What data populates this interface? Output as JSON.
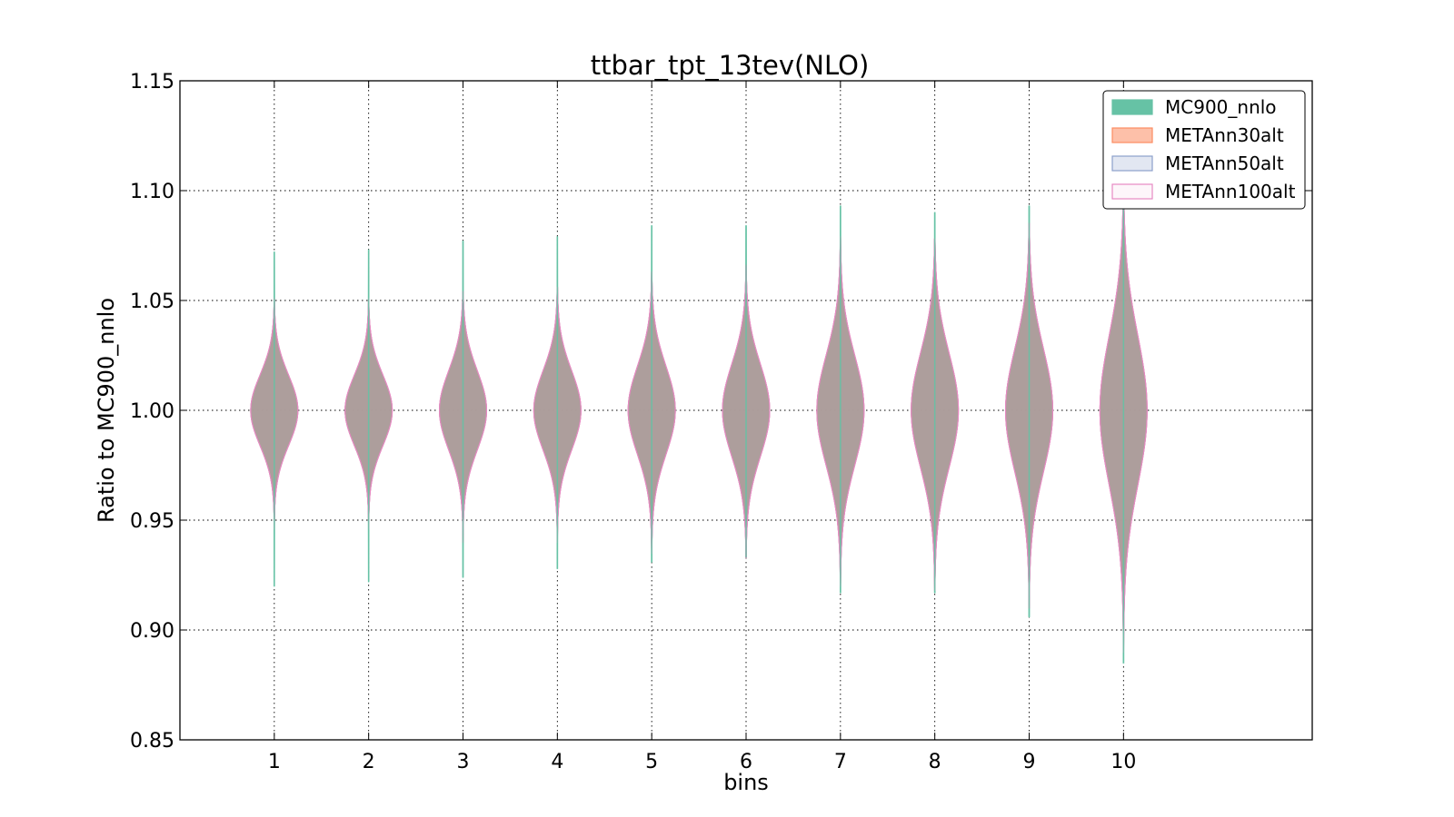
{
  "chart_data": {
    "type": "violin",
    "title": "ttbar_tpt_13tev(NLO)",
    "xlabel": "bins",
    "ylabel": "Ratio to MC900_nnlo",
    "categories": [
      "1",
      "2",
      "3",
      "4",
      "5",
      "6",
      "7",
      "8",
      "9",
      "10"
    ],
    "x_range": [
      0,
      12
    ],
    "ylim": [
      0.85,
      1.15
    ],
    "yticks": [
      "0.85",
      "0.90",
      "0.95",
      "1.00",
      "1.05",
      "1.10",
      "1.15"
    ],
    "grid": true,
    "legend_position": "top-right",
    "series": [
      {
        "name": "MC900_nnlo",
        "color": "#66c2a5",
        "min": [
          0.92,
          0.922,
          0.924,
          0.928,
          0.931,
          0.933,
          0.917,
          0.917,
          0.906,
          0.885
        ],
        "max": [
          1.072,
          1.073,
          1.077,
          1.079,
          1.084,
          1.084,
          1.093,
          1.09,
          1.093,
          1.11
        ],
        "width": [
          0.22,
          0.22,
          0.22,
          0.22,
          0.22,
          0.22,
          0.22,
          0.22,
          0.22,
          0.22
        ]
      },
      {
        "name": "METAnn30alt",
        "color": "#fc8d62",
        "min": [
          0.946,
          0.946,
          0.94,
          0.94,
          0.935,
          0.933,
          0.92,
          0.918,
          0.91,
          0.89
        ],
        "max": [
          1.051,
          1.051,
          1.054,
          1.056,
          1.063,
          1.066,
          1.079,
          1.078,
          1.085,
          1.105
        ],
        "width": [
          0.5,
          0.5,
          0.5,
          0.5,
          0.5,
          0.5,
          0.5,
          0.5,
          0.5,
          0.5
        ]
      },
      {
        "name": "METAnn50alt",
        "color": "#8da0cb",
        "min": [
          0.946,
          0.946,
          0.94,
          0.94,
          0.935,
          0.933,
          0.92,
          0.918,
          0.91,
          0.89
        ],
        "max": [
          1.051,
          1.051,
          1.054,
          1.056,
          1.063,
          1.066,
          1.079,
          1.078,
          1.085,
          1.105
        ],
        "width": [
          0.5,
          0.5,
          0.5,
          0.5,
          0.5,
          0.5,
          0.5,
          0.5,
          0.5,
          0.5
        ]
      },
      {
        "name": "METAnn100alt",
        "color": "#e78ac3",
        "min": [
          0.946,
          0.946,
          0.94,
          0.94,
          0.935,
          0.933,
          0.92,
          0.918,
          0.91,
          0.89
        ],
        "max": [
          1.051,
          1.051,
          1.054,
          1.056,
          1.063,
          1.066,
          1.079,
          1.078,
          1.085,
          1.105
        ],
        "width": [
          0.5,
          0.5,
          0.5,
          0.5,
          0.5,
          0.5,
          0.5,
          0.5,
          0.5,
          0.5
        ]
      }
    ],
    "spread_sigma": [
      0.016,
      0.016,
      0.018,
      0.018,
      0.02,
      0.021,
      0.025,
      0.026,
      0.028,
      0.034
    ]
  }
}
